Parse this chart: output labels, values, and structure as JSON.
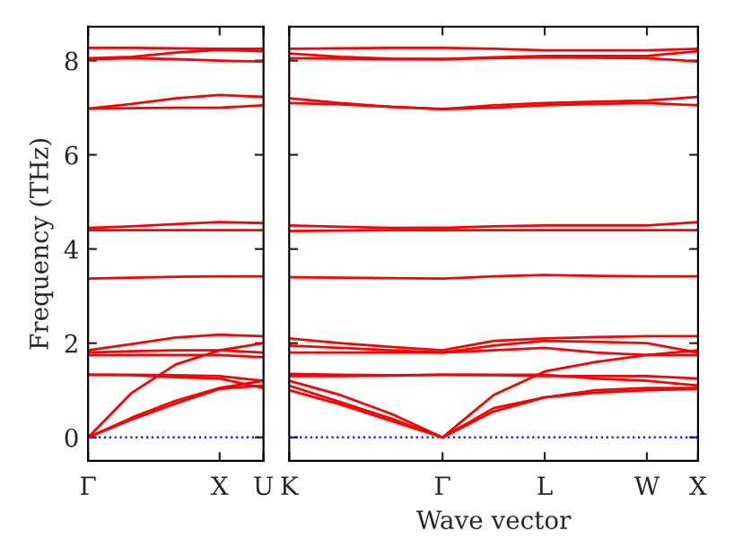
{
  "chart_data": [
    {
      "type": "line",
      "ylabel": "Frequency (THz)",
      "categories": [
        "Γ",
        null,
        null,
        "X",
        "U"
      ],
      "ylim": [
        -0.5,
        8.72
      ],
      "yticks": [
        0,
        2,
        4,
        6,
        8
      ],
      "grid": false,
      "line_style": "solid",
      "ref_lines": [
        {
          "axis": "y",
          "value": 0,
          "color": "#0000ff",
          "line_style": "dotted"
        }
      ],
      "series": [
        {
          "color": "#ff0000",
          "values": [
            0,
            0.38,
            0.72,
            1.03,
            1.1
          ]
        },
        {
          "color": "#ff0000",
          "values": [
            0,
            0.42,
            0.78,
            1.05,
            1.2
          ]
        },
        {
          "color": "#ff0000",
          "values": [
            0,
            0.95,
            1.55,
            1.85,
            2.0
          ]
        },
        {
          "color": "#ff0000",
          "values": [
            1.33,
            1.32,
            1.28,
            1.25,
            1.05
          ]
        },
        {
          "color": "#ff0000",
          "values": [
            1.33,
            1.33,
            1.32,
            1.3,
            1.2
          ]
        },
        {
          "color": "#ff0000",
          "values": [
            1.75,
            1.75,
            1.75,
            1.75,
            1.7
          ]
        },
        {
          "color": "#ff0000",
          "values": [
            1.8,
            1.83,
            1.85,
            1.85,
            1.8
          ]
        },
        {
          "color": "#ff0000",
          "values": [
            1.85,
            1.98,
            2.12,
            2.18,
            2.15
          ]
        },
        {
          "color": "#ff0000",
          "values": [
            3.37,
            3.39,
            3.41,
            3.42,
            3.42
          ]
        },
        {
          "color": "#ff0000",
          "values": [
            4.4,
            4.4,
            4.4,
            4.4,
            4.4
          ]
        },
        {
          "color": "#ff0000",
          "values": [
            4.45,
            4.48,
            4.53,
            4.57,
            4.55
          ]
        },
        {
          "color": "#ff0000",
          "values": [
            6.98,
            6.99,
            7.0,
            7.0,
            7.05
          ]
        },
        {
          "color": "#ff0000",
          "values": [
            6.98,
            7.08,
            7.2,
            7.27,
            7.23
          ]
        },
        {
          "color": "#ff0000",
          "values": [
            8.03,
            8.05,
            8.03,
            8.0,
            7.98
          ]
        },
        {
          "color": "#ff0000",
          "values": [
            8.05,
            8.08,
            8.17,
            8.23,
            8.2
          ]
        },
        {
          "color": "#ff0000",
          "values": [
            8.27,
            8.27,
            8.26,
            8.25,
            8.25
          ]
        }
      ]
    },
    {
      "type": "line",
      "xlabel": "Wave vector",
      "categories": [
        "K",
        null,
        null,
        "Γ",
        null,
        "L",
        null,
        "W",
        "X"
      ],
      "ylim": [
        -0.5,
        8.72
      ],
      "yticks": [
        0,
        2,
        4,
        6,
        8
      ],
      "tick_labels": "x",
      "grid": false,
      "line_style": "solid",
      "ref_lines": [
        {
          "axis": "y",
          "value": 0,
          "color": "#0000ff",
          "line_style": "dotted"
        }
      ],
      "series": [
        {
          "color": "#ff0000",
          "values": [
            1.0,
            0.7,
            0.35,
            0,
            0.55,
            0.85,
            0.95,
            1.0,
            1.03
          ]
        },
        {
          "color": "#ff0000",
          "values": [
            1.1,
            0.75,
            0.4,
            0,
            0.62,
            0.85,
            1.0,
            1.05,
            1.05
          ]
        },
        {
          "color": "#ff0000",
          "values": [
            1.2,
            0.9,
            0.5,
            0,
            0.9,
            1.4,
            1.6,
            1.75,
            1.85
          ]
        },
        {
          "color": "#ff0000",
          "values": [
            1.3,
            1.3,
            1.31,
            1.33,
            1.33,
            1.33,
            1.25,
            1.2,
            1.1
          ]
        },
        {
          "color": "#ff0000",
          "values": [
            1.35,
            1.33,
            1.32,
            1.33,
            1.32,
            1.3,
            1.3,
            1.3,
            1.25
          ]
        },
        {
          "color": "#ff0000",
          "values": [
            1.8,
            1.8,
            1.8,
            1.8,
            1.85,
            1.9,
            1.8,
            1.75,
            1.75
          ]
        },
        {
          "color": "#ff0000",
          "values": [
            1.95,
            1.9,
            1.85,
            1.8,
            1.95,
            2.05,
            2.03,
            2.0,
            1.8
          ]
        },
        {
          "color": "#ff0000",
          "values": [
            2.1,
            2.0,
            1.92,
            1.85,
            2.05,
            2.1,
            2.13,
            2.15,
            2.15
          ]
        },
        {
          "color": "#ff0000",
          "values": [
            3.4,
            3.39,
            3.38,
            3.37,
            3.42,
            3.45,
            3.43,
            3.42,
            3.42
          ]
        },
        {
          "color": "#ff0000",
          "values": [
            4.38,
            4.39,
            4.4,
            4.4,
            4.4,
            4.4,
            4.4,
            4.4,
            4.4
          ]
        },
        {
          "color": "#ff0000",
          "values": [
            4.5,
            4.47,
            4.45,
            4.45,
            4.48,
            4.5,
            4.5,
            4.5,
            4.57
          ]
        },
        {
          "color": "#ff0000",
          "values": [
            7.2,
            7.1,
            7.02,
            6.97,
            7.05,
            7.1,
            7.13,
            7.15,
            7.23
          ]
        },
        {
          "color": "#ff0000",
          "values": [
            7.1,
            7.07,
            7.02,
            6.97,
            7.0,
            7.05,
            7.08,
            7.1,
            7.05
          ]
        },
        {
          "color": "#ff0000",
          "values": [
            8.05,
            8.04,
            8.03,
            8.03,
            8.05,
            8.07,
            8.06,
            8.05,
            7.98
          ]
        },
        {
          "color": "#ff0000",
          "values": [
            8.15,
            8.08,
            8.04,
            8.03,
            8.07,
            8.1,
            8.1,
            8.1,
            8.2
          ]
        },
        {
          "color": "#ff0000",
          "values": [
            8.25,
            8.26,
            8.27,
            8.27,
            8.25,
            8.22,
            8.22,
            8.22,
            8.25
          ]
        }
      ]
    }
  ]
}
